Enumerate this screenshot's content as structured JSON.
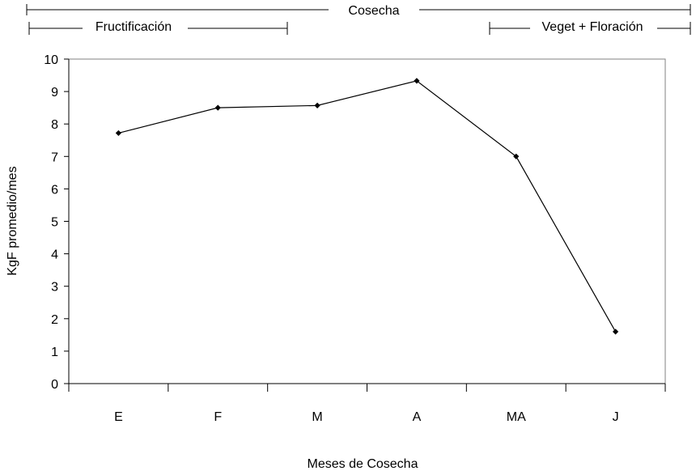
{
  "chart_data": {
    "type": "line",
    "categories": [
      "E",
      "F",
      "M",
      "A",
      "MA",
      "J"
    ],
    "series": [
      {
        "values": [
          7.72,
          8.5,
          8.57,
          9.33,
          7.0,
          1.6
        ]
      }
    ],
    "xlabel": "Meses de Cosecha",
    "ylabel": "KgF promedio/mes",
    "ylim": [
      0,
      10
    ],
    "yticks": [
      "0",
      "1",
      "2",
      "3",
      "4",
      "5",
      "6",
      "7",
      "8",
      "9",
      "10"
    ],
    "grid": false,
    "legend": "none",
    "marker": "diamond",
    "line_color": "#000000",
    "period_brackets": [
      {
        "label": "Cosecha",
        "from": "E",
        "to": "J"
      },
      {
        "label": "Fructificación",
        "from": "E",
        "to": "F"
      },
      {
        "label": "Veget + Floración",
        "from": "MA",
        "to": "J"
      }
    ]
  }
}
